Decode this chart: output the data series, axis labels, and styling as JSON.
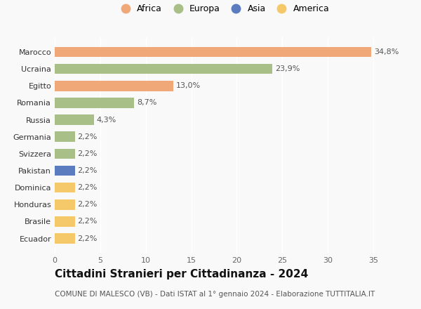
{
  "countries": [
    "Ecuador",
    "Brasile",
    "Honduras",
    "Dominica",
    "Pakistan",
    "Svizzera",
    "Germania",
    "Russia",
    "Romania",
    "Egitto",
    "Ucraina",
    "Marocco"
  ],
  "values": [
    2.2,
    2.2,
    2.2,
    2.2,
    2.2,
    2.2,
    2.2,
    4.3,
    8.7,
    13.0,
    23.9,
    34.8
  ],
  "labels": [
    "2,2%",
    "2,2%",
    "2,2%",
    "2,2%",
    "2,2%",
    "2,2%",
    "2,2%",
    "4,3%",
    "8,7%",
    "13,0%",
    "23,9%",
    "34,8%"
  ],
  "colors": [
    "#f5c96a",
    "#f5c96a",
    "#f5c96a",
    "#f5c96a",
    "#5b7dbf",
    "#a8bf88",
    "#a8bf88",
    "#a8bf88",
    "#a8bf88",
    "#f0a878",
    "#a8bf88",
    "#f0a878"
  ],
  "continent_legend": [
    "Africa",
    "Europa",
    "Asia",
    "America"
  ],
  "continent_colors": [
    "#f0a878",
    "#a8bf88",
    "#5b7dbf",
    "#f5c96a"
  ],
  "xlim": [
    0,
    37
  ],
  "xticks": [
    0,
    5,
    10,
    15,
    20,
    25,
    30,
    35
  ],
  "title": "Cittadini Stranieri per Cittadinanza - 2024",
  "subtitle": "COMUNE DI MALESCO (VB) - Dati ISTAT al 1° gennaio 2024 - Elaborazione TUTTITALIA.IT",
  "background_color": "#f9f9f9",
  "bar_height": 0.6,
  "label_fontsize": 8,
  "title_fontsize": 11,
  "subtitle_fontsize": 7.5
}
